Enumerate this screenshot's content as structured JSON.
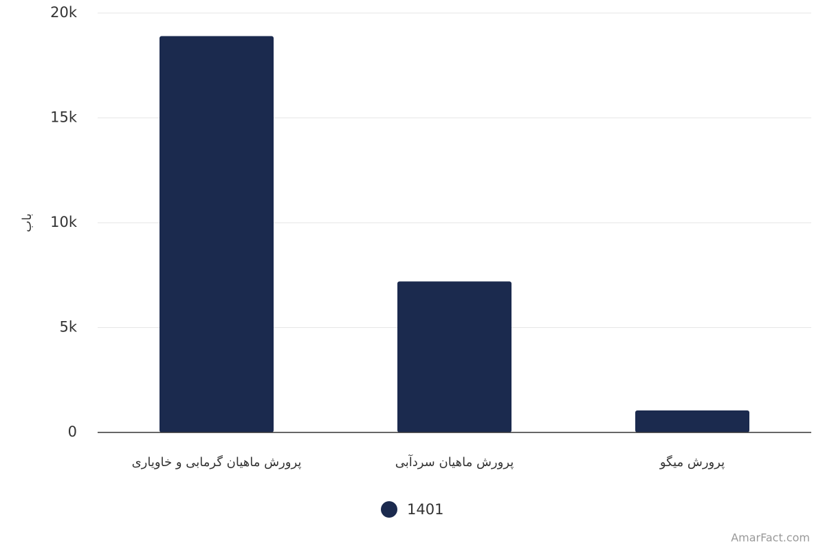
{
  "chart_data": {
    "type": "bar",
    "y_label": "باب",
    "categories": [
      "پرورش ماهیان گرمابی و خاویاری",
      "پرورش ماهیان سردآبی",
      "پرورش میگو"
    ],
    "series": [
      {
        "name": "1401",
        "color": "#1b2a4e",
        "values": [
          18900,
          7200,
          1050
        ]
      }
    ],
    "ylim": [
      0,
      20000
    ],
    "yticks": [
      0,
      {
        "value": 5000,
        "label": "5k"
      },
      {
        "value": 10000,
        "label": "10k"
      },
      {
        "value": 15000,
        "label": "15k"
      },
      {
        "value": 20000,
        "label": "20k"
      }
    ],
    "grid": true,
    "credit": "AmarFact.com"
  }
}
